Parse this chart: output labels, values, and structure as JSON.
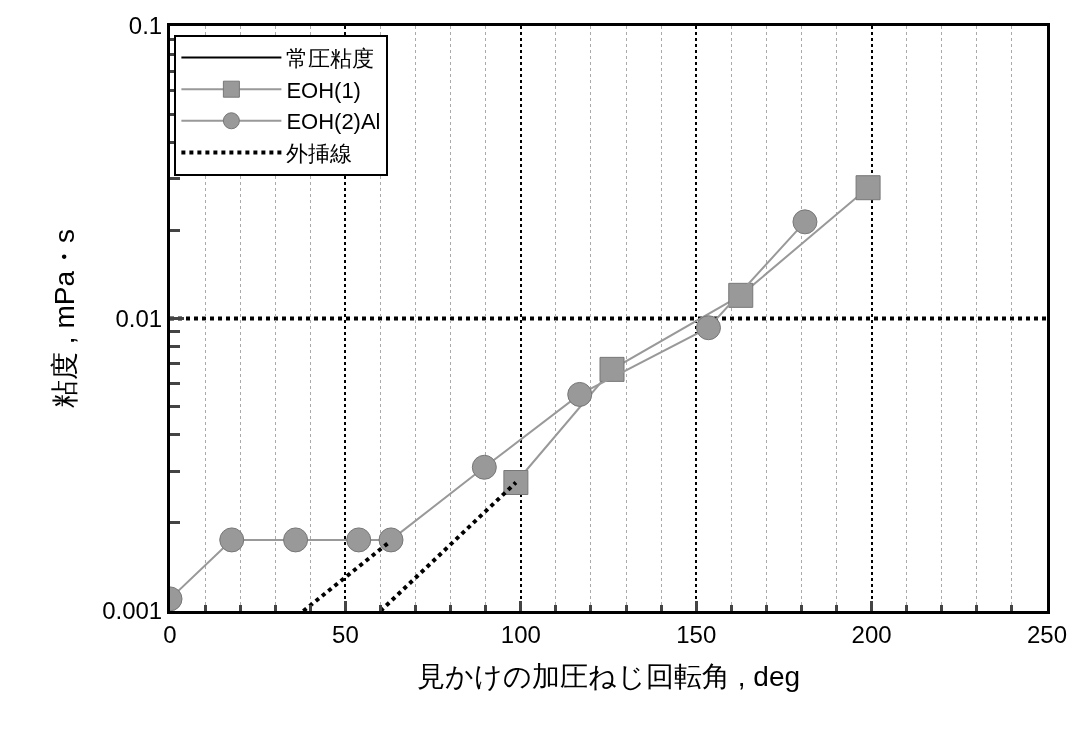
{
  "chart_data": {
    "type": "line",
    "xlabel": "見かけの加圧ねじ回転角 , deg",
    "ylabel": "粘度 , mPa・s",
    "log": "y",
    "xlim": [
      0,
      250
    ],
    "xticks": [
      0,
      50,
      100,
      150,
      200,
      250
    ],
    "ylim": [
      0.001,
      0.1
    ],
    "yticks": [
      0.001,
      0.01,
      0.1
    ],
    "grid": "x",
    "legend": "top left",
    "ref_lines": [
      {
        "axis": "y",
        "value": 0.01,
        "color": "#000000",
        "line_style": "dotted"
      }
    ],
    "series": [
      {
        "name": "常圧粘度",
        "color": "#000000",
        "marker": "none",
        "line_style": "solid",
        "values": [
          null
        ]
      },
      {
        "name": "EOH(1)",
        "color": "#999999",
        "marker": "square",
        "line_style": "solid",
        "x": [
          98.6,
          126,
          162.7,
          199
        ],
        "values": [
          0.00275,
          0.0067,
          0.012,
          0.028
        ]
      },
      {
        "name": "EOH(2)Al",
        "color": "#999999",
        "marker": "circle",
        "line_style": "solid",
        "x": [
          0,
          17.6,
          35.8,
          53.8,
          63,
          89.6,
          116.8,
          153.5,
          181
        ],
        "values": [
          0.0011,
          0.00175,
          0.00175,
          0.00175,
          0.00175,
          0.0031,
          0.0055,
          0.0093,
          0.0214
        ]
      },
      {
        "name": "外挿線",
        "color": "#000000",
        "marker": "none",
        "line_style": "dotted",
        "x": [
          38,
          62,
          null,
          60,
          98.6
        ],
        "values": [
          0.001,
          0.0017,
          null,
          0.001,
          0.00275
        ]
      }
    ]
  }
}
